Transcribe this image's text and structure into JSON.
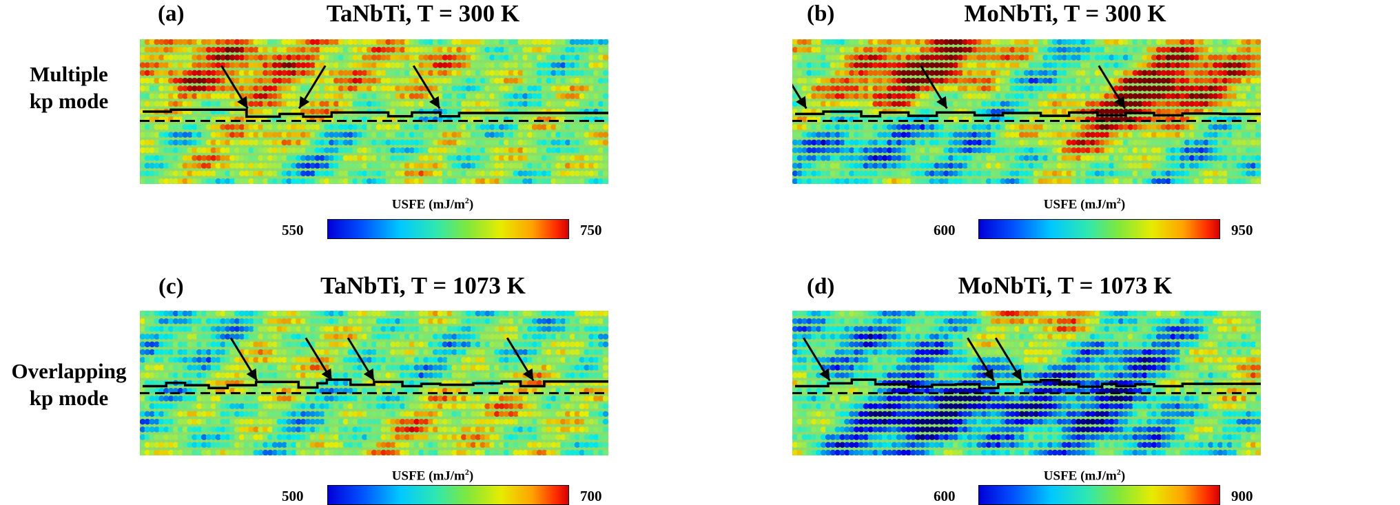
{
  "figure": {
    "row_labels": [
      {
        "line1": "Multiple",
        "line2": "kp mode"
      },
      {
        "line1": "Overlapping",
        "line2": "kp mode"
      }
    ]
  },
  "chart_data": [
    {
      "type": "heatmap",
      "panel": "(a)",
      "title": "TaNbTi, T = 300 K",
      "colorbar": {
        "label": "USFE",
        "unit": "(mJ/m",
        "unit_sup": "2",
        "unit_close": ")",
        "min": 550,
        "max": 750,
        "min_label": "550",
        "max_label": "750",
        "colormap": "jet"
      },
      "grid": {
        "cols": 99,
        "rows": 19
      },
      "mean_row": 10.2,
      "arrow_count": 3,
      "hotspots": [
        {
          "x": 0.15,
          "y": 0.3,
          "v": 0.55
        },
        {
          "x": 0.24,
          "y": 0.78,
          "v": 0.9
        },
        {
          "x": 0.29,
          "y": 0.9,
          "v": -0.75
        },
        {
          "x": 0.32,
          "y": 0.18,
          "v": 0.45
        },
        {
          "x": 0.13,
          "y": 0.55,
          "v": -0.5
        },
        {
          "x": 0.52,
          "y": 0.65,
          "v": -0.45
        },
        {
          "x": 0.59,
          "y": 0.22,
          "v": 0.45
        },
        {
          "x": 0.56,
          "y": 0.78,
          "v": 0.4
        },
        {
          "x": 0.72,
          "y": 0.55,
          "v": -0.3
        },
        {
          "x": 0.85,
          "y": 0.35,
          "v": 0.3
        },
        {
          "x": 0.94,
          "y": 0.12,
          "v": -0.35
        },
        {
          "x": 0.08,
          "y": 0.15,
          "v": 0.35
        }
      ]
    },
    {
      "type": "heatmap",
      "panel": "(b)",
      "title": "MoNbTi, T = 300 K",
      "colorbar": {
        "label": "USFE",
        "unit": "(mJ/m",
        "unit_sup": "2",
        "unit_close": ")",
        "min": 600,
        "max": 950,
        "min_label": "600",
        "max_label": "950",
        "colormap": "jet"
      },
      "grid": {
        "cols": 99,
        "rows": 19
      },
      "mean_row": 10.2,
      "arrow_count": 3,
      "hotspots": [
        {
          "x": 0.2,
          "y": 0.3,
          "v": 0.8
        },
        {
          "x": 0.34,
          "y": 0.15,
          "v": 0.7
        },
        {
          "x": 0.62,
          "y": 0.25,
          "v": -0.75
        },
        {
          "x": 0.72,
          "y": 0.45,
          "v": 0.95
        },
        {
          "x": 0.8,
          "y": 0.18,
          "v": 0.55
        },
        {
          "x": 0.1,
          "y": 0.7,
          "v": -0.6
        },
        {
          "x": 0.45,
          "y": 0.8,
          "v": -0.5
        },
        {
          "x": 0.56,
          "y": 0.6,
          "v": 0.5
        },
        {
          "x": 0.89,
          "y": 0.72,
          "v": -0.5
        },
        {
          "x": 0.96,
          "y": 0.35,
          "v": 0.45
        },
        {
          "x": 0.28,
          "y": 0.62,
          "v": -0.4
        }
      ]
    },
    {
      "type": "heatmap",
      "panel": "(c)",
      "title": "TaNbTi, T = 1073 K",
      "colorbar": {
        "label": "USFE",
        "unit": "(mJ/m",
        "unit_sup": "2",
        "unit_close": ")",
        "min": 500,
        "max": 700,
        "min_label": "500",
        "max_label": "700",
        "colormap": "jet"
      },
      "grid": {
        "cols": 99,
        "rows": 19
      },
      "mean_row": 10.3,
      "arrow_count": 4,
      "hotspots": [
        {
          "x": 0.12,
          "y": 0.2,
          "v": -0.4
        },
        {
          "x": 0.24,
          "y": 0.45,
          "v": 0.35
        },
        {
          "x": 0.4,
          "y": 0.72,
          "v": -0.35
        },
        {
          "x": 0.58,
          "y": 0.8,
          "v": 0.4
        },
        {
          "x": 0.66,
          "y": 0.35,
          "v": -0.3
        },
        {
          "x": 0.83,
          "y": 0.5,
          "v": 0.35
        },
        {
          "x": 0.93,
          "y": 0.2,
          "v": -0.3
        },
        {
          "x": 0.05,
          "y": 0.7,
          "v": -0.3
        }
      ]
    },
    {
      "type": "heatmap",
      "panel": "(d)",
      "title": "MoNbTi, T = 1073 K",
      "colorbar": {
        "label": "USFE",
        "unit": "(mJ/m",
        "unit_sup": "2",
        "unit_close": ")",
        "min": 600,
        "max": 900,
        "min_label": "600",
        "max_label": "900",
        "colormap": "jet"
      },
      "grid": {
        "cols": 99,
        "rows": 19
      },
      "mean_row": 10.3,
      "arrow_count": 3,
      "hotspots": [
        {
          "x": 0.08,
          "y": 0.25,
          "v": -0.6
        },
        {
          "x": 0.17,
          "y": 0.8,
          "v": -0.7
        },
        {
          "x": 0.31,
          "y": 0.25,
          "v": -0.6
        },
        {
          "x": 0.35,
          "y": 0.7,
          "v": -0.8
        },
        {
          "x": 0.49,
          "y": 0.08,
          "v": 0.6
        },
        {
          "x": 0.58,
          "y": 0.55,
          "v": -0.5
        },
        {
          "x": 0.65,
          "y": 0.82,
          "v": -0.6
        },
        {
          "x": 0.78,
          "y": 0.3,
          "v": -0.6
        },
        {
          "x": 0.92,
          "y": 0.45,
          "v": 0.5
        },
        {
          "x": 0.86,
          "y": 0.78,
          "v": -0.4
        },
        {
          "x": 0.05,
          "y": 0.6,
          "v": 0.35
        }
      ]
    }
  ]
}
